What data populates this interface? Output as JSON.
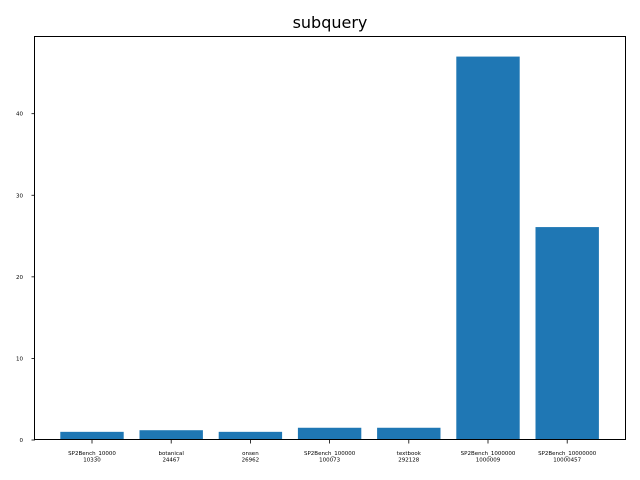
{
  "chart_data": {
    "type": "bar",
    "title": "subquery",
    "xlabel": "",
    "ylabel": "",
    "categories": [
      [
        "SP2Bench_10000",
        "10330"
      ],
      [
        "botanical",
        "24467"
      ],
      [
        "onsen",
        "26962"
      ],
      [
        "SP2Bench_100000",
        "100073"
      ],
      [
        "textbook",
        "292128"
      ],
      [
        "SP2Bench_1000000",
        "1000009"
      ],
      [
        "SP2Bench_10000000",
        "10000457"
      ]
    ],
    "values": [
      1.0,
      1.2,
      1.0,
      1.5,
      1.5,
      47.0,
      26.1
    ],
    "ylim": [
      0,
      49.4
    ],
    "yticks": [
      0,
      10,
      20,
      30,
      40
    ],
    "bar_color": "#1f77b4",
    "grid": false,
    "legend": "none"
  }
}
